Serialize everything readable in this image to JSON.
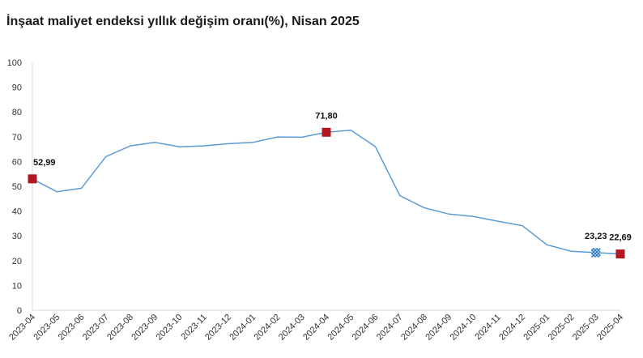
{
  "title": "İnşaat maliyet endeksi yıllık değişim oranı(%), Nisan 2025",
  "chart_data": {
    "type": "line",
    "title": "İnşaat maliyet endeksi yıllık değişim oranı(%), Nisan 2025",
    "xlabel": "",
    "ylabel": "",
    "ylim": [
      0,
      100
    ],
    "yticks": [
      0,
      10,
      20,
      30,
      40,
      50,
      60,
      70,
      80,
      90,
      100
    ],
    "grid": false,
    "categories": [
      "2023-04",
      "2023-05",
      "2023-06",
      "2023-07",
      "2023-08",
      "2023-09",
      "2023-10",
      "2023-11",
      "2023-12",
      "2024-01",
      "2024-02",
      "2024-03",
      "2024-04",
      "2024-05",
      "2024-06",
      "2024-07",
      "2024-08",
      "2024-09",
      "2024-10",
      "2024-11",
      "2024-12",
      "2025-01",
      "2025-02",
      "2025-03",
      "2025-04"
    ],
    "series": [
      {
        "values": [
          52.99,
          47.8,
          49.2,
          62.0,
          66.3,
          67.7,
          65.9,
          66.3,
          67.2,
          67.7,
          69.9,
          69.8,
          71.8,
          72.6,
          66.0,
          46.2,
          41.3,
          38.8,
          37.8,
          35.9,
          34.1,
          26.4,
          23.8,
          23.23,
          22.69
        ],
        "color": "#5b9bd5"
      }
    ],
    "markers": [
      {
        "index": 0,
        "label": "52,99",
        "color": "#b0171f",
        "style": "solid"
      },
      {
        "index": 12,
        "label": "71,80",
        "color": "#b0171f",
        "style": "solid"
      },
      {
        "index": 23,
        "label": "23,23",
        "color": "#2e75b6",
        "style": "checkered"
      },
      {
        "index": 24,
        "label": "22,69",
        "color": "#b0171f",
        "style": "solid"
      }
    ]
  }
}
